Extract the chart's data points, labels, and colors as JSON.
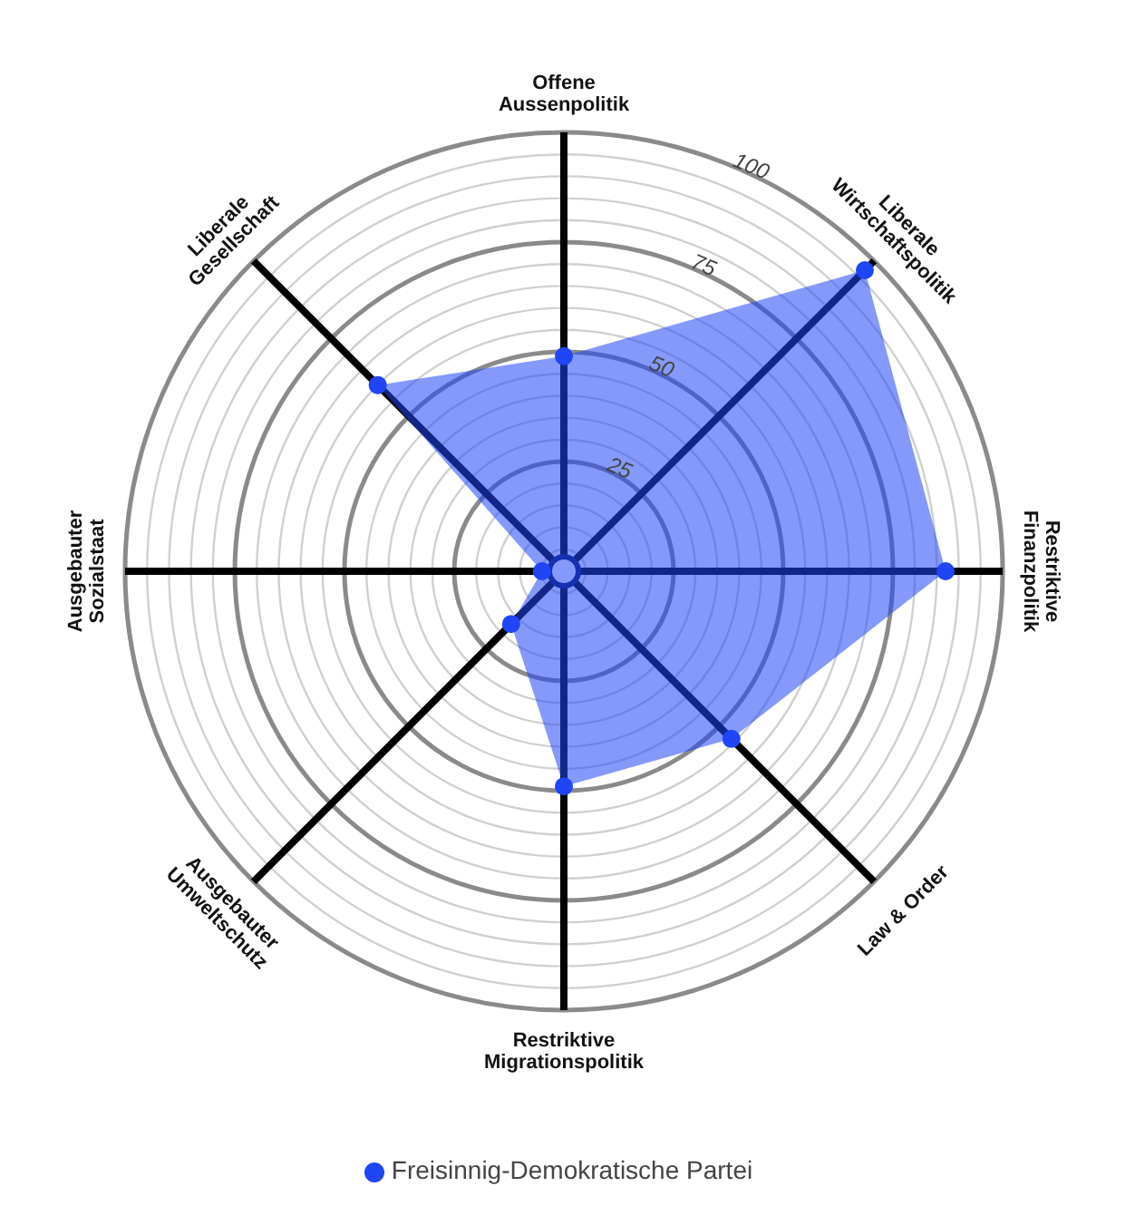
{
  "chart_data": {
    "type": "radar",
    "categories": [
      "Offene Aussenpolitik",
      "Liberale Wirtschaftspolitik",
      "Restriktive Finanzpolitik",
      "Law & Order",
      "Restriktive Migrationspolitik",
      "Ausgebauter Umweltschutz",
      "Ausgebauter Sozialstaat",
      "Liberale Gesellschaft"
    ],
    "series": [
      {
        "name": "Freisinnig-Demokratische Partei",
        "color": "#1f45f5",
        "values": [
          49,
          97,
          87,
          54,
          49,
          17,
          5,
          60
        ]
      }
    ],
    "ylim": [
      0,
      100
    ],
    "yticks": [
      25,
      50,
      75,
      100
    ],
    "grid": true,
    "legend": "bottom",
    "marker": "circle"
  }
}
